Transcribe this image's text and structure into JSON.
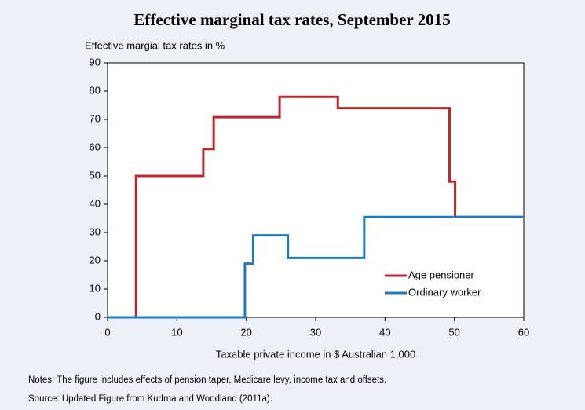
{
  "chart_data": {
    "type": "line",
    "title": "Effective marginal tax rates, September 2015",
    "y_label": "Effective margial tax rates in %",
    "x_label": "Taxable private income in $ Australian 1,000",
    "notes": "Notes: The figure includes effects of pension taper, Medicare levy, income tax and offsets.",
    "source": "Source: Updated Figure from Kudrna and Woodland (2011a).",
    "xlim": [
      0,
      60
    ],
    "xticks": [
      0,
      10,
      20,
      30,
      40,
      50,
      60
    ],
    "ylim": [
      0,
      90
    ],
    "yticks": [
      0,
      10,
      20,
      30,
      40,
      50,
      60,
      70,
      80,
      90
    ],
    "grid": false,
    "legend": "lower right",
    "series": [
      {
        "name": "Age pensioner",
        "color": "#c0272d",
        "x": [
          0,
          4.1,
          4.1,
          13.8,
          13.8,
          15.3,
          15.3,
          24.8,
          24.8,
          33.2,
          33.2,
          49.3,
          49.3,
          50.1,
          50.1,
          60
        ],
        "values": [
          0,
          0,
          50,
          50,
          59.5,
          59.5,
          70.8,
          70.8,
          78,
          78,
          74,
          74,
          48,
          48,
          35.5,
          35.5
        ]
      },
      {
        "name": "Ordinary worker",
        "color": "#1f7bc1",
        "x": [
          0,
          19.8,
          19.8,
          21,
          21,
          26,
          26,
          37,
          37,
          60
        ],
        "values": [
          0,
          0,
          19,
          19,
          29,
          29,
          21,
          21,
          35.5,
          35.5
        ]
      }
    ]
  }
}
